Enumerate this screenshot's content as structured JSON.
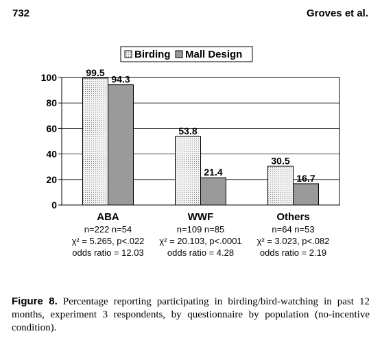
{
  "header": {
    "page_number": "732",
    "running_head": "Groves et al."
  },
  "chart_data": {
    "type": "bar",
    "categories": [
      "ABA",
      "WWF",
      "Others"
    ],
    "series": [
      {
        "name": "Birding",
        "values": [
          99.5,
          53.8,
          30.5
        ],
        "pattern": "dotted",
        "color": "#e6e6e6"
      },
      {
        "name": "Mall Design",
        "values": [
          94.3,
          21.4,
          16.7
        ],
        "pattern": "solid",
        "color": "#9a9a9a"
      }
    ],
    "ylim": [
      0,
      100
    ],
    "yticks": [
      "0",
      "20",
      "40",
      "60",
      "80",
      "100"
    ],
    "legend_position": "top",
    "grid": true,
    "group_notes": [
      {
        "n": "n=222  n=54",
        "chi": "χ² = 5.265, p<.022",
        "odds": "odds ratio = 12.03"
      },
      {
        "n": "n=109  n=85",
        "chi": "χ² = 20.103, p<.0001",
        "odds": "odds ratio = 4.28"
      },
      {
        "n": "n=64  n=53",
        "chi": "χ² = 3.023, p<.082",
        "odds": "odds ratio = 2.19"
      }
    ]
  },
  "caption": {
    "label": "Figure 8.",
    "text": "Percentage reporting participating in birding/bird-watching in past 12 months, experiment 3 respondents, by questionnaire by population (no-incentive condition)."
  }
}
